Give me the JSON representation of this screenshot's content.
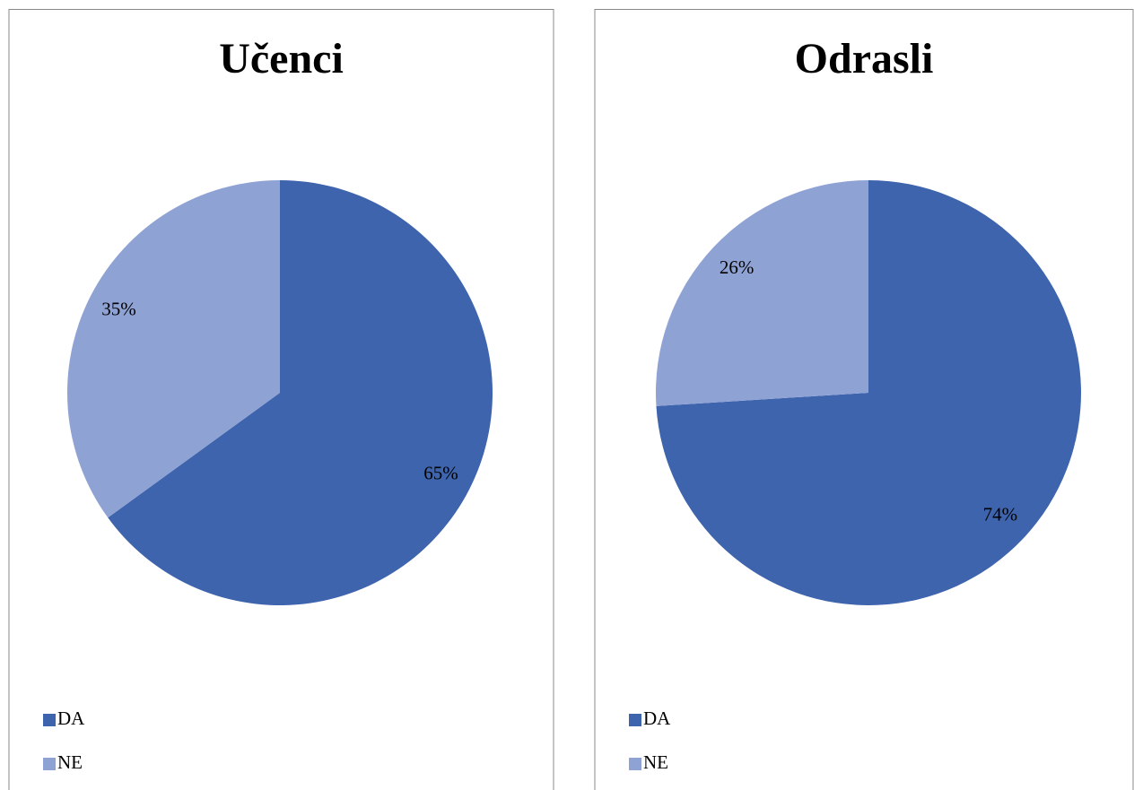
{
  "chart_data": [
    {
      "type": "pie",
      "title": "Učenci",
      "categories": [
        "DA",
        "NE"
      ],
      "values": [
        65,
        35
      ],
      "value_labels": [
        "65%",
        "35%"
      ],
      "colors": [
        "#3d64ad",
        "#8fa2d4"
      ]
    },
    {
      "type": "pie",
      "title": "Odrasli",
      "categories": [
        "DA",
        "NE"
      ],
      "values": [
        74,
        26
      ],
      "value_labels": [
        "74%",
        "26%"
      ],
      "colors": [
        "#3d64ad",
        "#8fa2d4"
      ]
    }
  ]
}
